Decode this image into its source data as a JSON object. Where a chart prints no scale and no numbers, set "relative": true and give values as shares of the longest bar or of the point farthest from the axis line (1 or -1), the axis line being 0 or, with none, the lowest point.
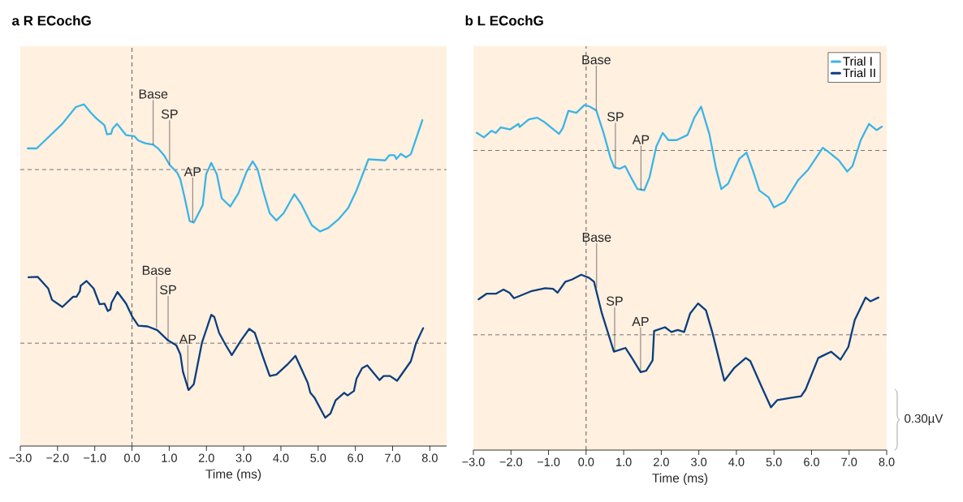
{
  "chart_data": [
    {
      "type": "line",
      "title": "a  R ECochG",
      "xlabel": "Time (ms)",
      "relative": true,
      "xlim": [
        -3.0,
        8.45
      ],
      "xticks": [
        {
          "value": -3,
          "label": "−3.0"
        },
        {
          "value": -2,
          "label": "−2.0"
        },
        {
          "value": -1,
          "label": "−1.0"
        },
        {
          "value": 0,
          "label": "0.0"
        },
        {
          "value": 1,
          "label": "1.0"
        },
        {
          "value": 2,
          "label": "2.0"
        },
        {
          "value": 3,
          "label": "3.0"
        },
        {
          "value": 4,
          "label": "4.0"
        },
        {
          "value": 5,
          "label": "5.0"
        },
        {
          "value": 6,
          "label": "6.0"
        },
        {
          "value": 7,
          "label": "7.0"
        },
        {
          "value": 8,
          "label": "8.0"
        }
      ],
      "series": [
        {
          "color": "#3cb4e5",
          "x": [
            -2.8,
            -2.56,
            -1.87,
            -1.51,
            -1.29,
            -1.11,
            -0.96,
            -0.74,
            -0.67,
            -0.56,
            -0.52,
            -0.4,
            -0.27,
            -0.16,
            0.06,
            0.17,
            0.35,
            0.57,
            0.71,
            0.86,
            1.01,
            1.22,
            1.3,
            1.41,
            1.55,
            1.66,
            1.9,
            1.99,
            2.13,
            2.28,
            2.41,
            2.64,
            2.86,
            3.08,
            3.24,
            3.37,
            3.52,
            3.7,
            3.88,
            4.07,
            4.36,
            4.54,
            4.83,
            5.05,
            5.27,
            5.56,
            5.81,
            6.03,
            6.35,
            6.8,
            6.91,
            7.05,
            7.1,
            7.22,
            7.36,
            7.49,
            7.8
          ],
          "values": [
            0.871,
            0.871,
            0.943,
            0.992,
            1.0,
            0.976,
            0.959,
            0.939,
            0.912,
            0.914,
            0.929,
            0.943,
            0.925,
            0.91,
            0.907,
            0.894,
            0.886,
            0.882,
            0.87,
            0.851,
            0.823,
            0.799,
            0.78,
            0.729,
            0.658,
            0.654,
            0.705,
            0.795,
            0.829,
            0.795,
            0.725,
            0.701,
            0.74,
            0.803,
            0.833,
            0.811,
            0.748,
            0.681,
            0.66,
            0.681,
            0.737,
            0.709,
            0.646,
            0.628,
            0.638,
            0.665,
            0.697,
            0.748,
            0.839,
            0.836,
            0.851,
            0.851,
            0.84,
            0.855,
            0.845,
            0.854,
            0.954
          ]
        },
        {
          "color": "#0c3e7d",
          "x": [
            -2.78,
            -2.53,
            -2.25,
            -2.15,
            -1.87,
            -1.58,
            -1.49,
            -1.4,
            -1.38,
            -1.22,
            -1.03,
            -0.87,
            -0.74,
            -0.65,
            -0.58,
            -0.55,
            -0.39,
            -0.16,
            0.01,
            0.17,
            0.42,
            0.68,
            0.97,
            1.19,
            1.3,
            1.37,
            1.52,
            1.66,
            1.88,
            2.13,
            2.21,
            2.34,
            2.5,
            2.68,
            2.94,
            3.15,
            3.3,
            3.52,
            3.7,
            3.88,
            4.17,
            4.39,
            4.72,
            4.79,
            4.9,
            5.19,
            5.33,
            5.47,
            5.7,
            5.79,
            5.96,
            6.03,
            6.18,
            6.32,
            6.65,
            6.76,
            6.93,
            7.12,
            7.49,
            7.63,
            7.82
          ],
          "values": [
            0.494,
            0.495,
            0.461,
            0.428,
            0.407,
            0.437,
            0.437,
            0.453,
            0.469,
            0.483,
            0.461,
            0.415,
            0.417,
            0.395,
            0.4,
            0.419,
            0.451,
            0.417,
            0.378,
            0.352,
            0.35,
            0.339,
            0.309,
            0.295,
            0.268,
            0.217,
            0.164,
            0.181,
            0.303,
            0.384,
            0.378,
            0.331,
            0.299,
            0.266,
            0.311,
            0.343,
            0.331,
            0.26,
            0.205,
            0.209,
            0.238,
            0.264,
            0.185,
            0.156,
            0.142,
            0.083,
            0.095,
            0.134,
            0.156,
            0.148,
            0.161,
            0.197,
            0.228,
            0.236,
            0.193,
            0.205,
            0.205,
            0.191,
            0.248,
            0.301,
            0.345
          ]
        }
      ],
      "ref_lines": [
        {
          "axis": "x",
          "value": 0,
          "color": "#333333",
          "line_style": "dashed"
        },
        {
          "axis": "y",
          "value": 0.809,
          "color": "#555555",
          "line_style": "dashed"
        },
        {
          "axis": "y",
          "value": 0.301,
          "color": "#555555",
          "line_style": "dashed"
        }
      ],
      "annotations": [
        {
          "text": "Base",
          "x": 0.57,
          "y": 0.882
        },
        {
          "text": "SP",
          "x": 1.01,
          "y": 0.823
        },
        {
          "text": "AP",
          "x": 1.63,
          "y": 0.655
        },
        {
          "text": "Base",
          "x": 0.66,
          "y": 0.345
        },
        {
          "text": "SP",
          "x": 0.97,
          "y": 0.309
        },
        {
          "text": "AP",
          "x": 1.5,
          "y": 0.165
        }
      ]
    },
    {
      "type": "line",
      "title": "b  L ECochG",
      "xlabel": "Time (ms)",
      "relative": true,
      "xlim": [
        -3.0,
        8.0
      ],
      "legend": "top right",
      "xticks": [
        {
          "value": -3,
          "label": "−3.0"
        },
        {
          "value": -2,
          "label": "−2.0"
        },
        {
          "value": -1,
          "label": "−1.0"
        },
        {
          "value": 0,
          "label": "0.0"
        },
        {
          "value": 1,
          "label": "1.0"
        },
        {
          "value": 2,
          "label": "2.0"
        },
        {
          "value": 3,
          "label": "3.0"
        },
        {
          "value": 4,
          "label": "4.0"
        },
        {
          "value": 5,
          "label": "5.0"
        },
        {
          "value": 6,
          "label": "6.0"
        },
        {
          "value": 7,
          "label": "7.0"
        },
        {
          "value": 8,
          "label": "8.0"
        }
      ],
      "series": [
        {
          "name": "Trial I",
          "color": "#3cb4e5",
          "x": [
            -2.91,
            -2.72,
            -2.52,
            -2.4,
            -2.27,
            -2.02,
            -1.8,
            -1.77,
            -1.52,
            -1.3,
            -1.12,
            -0.72,
            -0.62,
            -0.47,
            -0.26,
            -0.04,
            0.1,
            0.27,
            0.47,
            0.65,
            0.75,
            0.9,
            1.04,
            1.19,
            1.37,
            1.55,
            1.69,
            1.87,
            2.04,
            2.19,
            2.41,
            2.7,
            2.88,
            3.06,
            3.28,
            3.46,
            3.6,
            3.78,
            4.07,
            4.27,
            4.46,
            4.61,
            4.86,
            5.0,
            5.29,
            5.65,
            5.9,
            6.3,
            6.52,
            6.73,
            6.95,
            7.09,
            7.31,
            7.53,
            7.73,
            7.87
          ],
          "values": [
            0.919,
            0.906,
            0.925,
            0.919,
            0.935,
            0.929,
            0.945,
            0.936,
            0.958,
            0.963,
            0.951,
            0.916,
            0.933,
            0.983,
            0.977,
            1.0,
            0.995,
            0.984,
            0.917,
            0.846,
            0.819,
            0.815,
            0.823,
            0.791,
            0.756,
            0.753,
            0.791,
            0.88,
            0.919,
            0.898,
            0.898,
            0.913,
            0.963,
            0.995,
            0.916,
            0.815,
            0.756,
            0.772,
            0.843,
            0.862,
            0.803,
            0.752,
            0.732,
            0.703,
            0.72,
            0.783,
            0.811,
            0.876,
            0.858,
            0.839,
            0.807,
            0.823,
            0.898,
            0.945,
            0.927,
            0.937
          ]
        },
        {
          "name": "Trial II",
          "color": "#0c3e7d",
          "x": [
            -2.86,
            -2.65,
            -2.4,
            -2.2,
            -2.04,
            -1.92,
            -1.47,
            -1.09,
            -0.88,
            -0.76,
            -0.55,
            -0.38,
            -0.13,
            0.08,
            0.21,
            0.42,
            0.74,
            1.05,
            1.22,
            1.45,
            1.6,
            1.77,
            1.81,
            2.1,
            2.27,
            2.44,
            2.61,
            2.77,
            2.98,
            3.19,
            3.36,
            3.68,
            3.95,
            4.25,
            4.37,
            4.67,
            4.92,
            5.09,
            5.47,
            5.72,
            5.84,
            6.18,
            6.52,
            6.77,
            6.98,
            7.15,
            7.44,
            7.57,
            7.78
          ],
          "values": [
            0.437,
            0.453,
            0.453,
            0.465,
            0.456,
            0.44,
            0.46,
            0.469,
            0.467,
            0.456,
            0.488,
            0.494,
            0.508,
            0.499,
            0.488,
            0.396,
            0.285,
            0.296,
            0.267,
            0.226,
            0.23,
            0.26,
            0.345,
            0.356,
            0.342,
            0.348,
            0.342,
            0.396,
            0.425,
            0.405,
            0.341,
            0.201,
            0.239,
            0.267,
            0.258,
            0.184,
            0.124,
            0.145,
            0.152,
            0.156,
            0.175,
            0.267,
            0.285,
            0.262,
            0.299,
            0.377,
            0.442,
            0.431,
            0.442
          ]
        }
      ],
      "ref_lines": [
        {
          "axis": "x",
          "value": 0,
          "color": "#333333",
          "line_style": "dashed"
        },
        {
          "axis": "y",
          "value": 0.868,
          "color": "#555555",
          "line_style": "dashed"
        },
        {
          "axis": "y",
          "value": 0.334,
          "color": "#555555",
          "line_style": "dashed"
        }
      ],
      "annotations": [
        {
          "text": "Base",
          "x": 0.27,
          "y": 0.984
        },
        {
          "text": "SP",
          "x": 0.78,
          "y": 0.819
        },
        {
          "text": "AP",
          "x": 1.46,
          "y": 0.753
        },
        {
          "text": "Base",
          "x": 0.28,
          "y": 0.47
        },
        {
          "text": "SP",
          "x": 0.76,
          "y": 0.285
        },
        {
          "text": "AP",
          "x": 1.45,
          "y": 0.226
        },
        "0.30µV"
      ]
    }
  ]
}
